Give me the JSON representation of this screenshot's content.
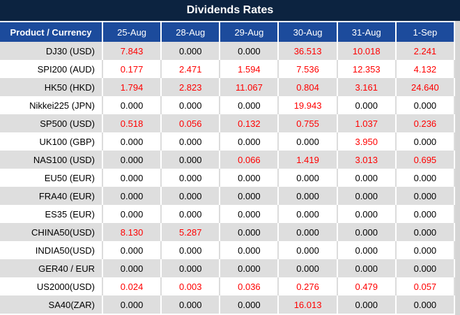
{
  "title": "Dividends Rates",
  "table": {
    "product_header": "Product / Currency",
    "date_headers": [
      "25-Aug",
      "28-Aug",
      "29-Aug",
      "30-Aug",
      "31-Aug",
      "1-Sep"
    ],
    "rows": [
      {
        "product": "DJ30 (USD)",
        "values": [
          "7.843",
          "0.000",
          "0.000",
          "36.513",
          "10.018",
          "2.241"
        ]
      },
      {
        "product": "SPI200 (AUD)",
        "values": [
          "0.177",
          "2.471",
          "1.594",
          "7.536",
          "12.353",
          "4.132"
        ]
      },
      {
        "product": "HK50 (HKD)",
        "values": [
          "1.794",
          "2.823",
          "11.067",
          "0.804",
          "3.161",
          "24.640"
        ]
      },
      {
        "product": "Nikkei225 (JPN)",
        "values": [
          "0.000",
          "0.000",
          "0.000",
          "19.943",
          "0.000",
          "0.000"
        ]
      },
      {
        "product": "SP500 (USD)",
        "values": [
          "0.518",
          "0.056",
          "0.132",
          "0.755",
          "1.037",
          "0.236"
        ]
      },
      {
        "product": "UK100 (GBP)",
        "values": [
          "0.000",
          "0.000",
          "0.000",
          "0.000",
          "3.950",
          "0.000"
        ]
      },
      {
        "product": "NAS100 (USD)",
        "values": [
          "0.000",
          "0.000",
          "0.066",
          "1.419",
          "3.013",
          "0.695"
        ]
      },
      {
        "product": "EU50 (EUR)",
        "values": [
          "0.000",
          "0.000",
          "0.000",
          "0.000",
          "0.000",
          "0.000"
        ]
      },
      {
        "product": "FRA40 (EUR)",
        "values": [
          "0.000",
          "0.000",
          "0.000",
          "0.000",
          "0.000",
          "0.000"
        ]
      },
      {
        "product": "ES35 (EUR)",
        "values": [
          "0.000",
          "0.000",
          "0.000",
          "0.000",
          "0.000",
          "0.000"
        ]
      },
      {
        "product": "CHINA50(USD)",
        "values": [
          "8.130",
          "5.287",
          "0.000",
          "0.000",
          "0.000",
          "0.000"
        ]
      },
      {
        "product": "INDIA50(USD)",
        "values": [
          "0.000",
          "0.000",
          "0.000",
          "0.000",
          "0.000",
          "0.000"
        ]
      },
      {
        "product": "GER40 / EUR",
        "values": [
          "0.000",
          "0.000",
          "0.000",
          "0.000",
          "0.000",
          "0.000"
        ]
      },
      {
        "product": "US2000(USD)",
        "values": [
          "0.024",
          "0.003",
          "0.036",
          "0.276",
          "0.479",
          "0.057"
        ]
      },
      {
        "product": "SA40(ZAR)",
        "values": [
          "0.000",
          "0.000",
          "0.000",
          "16.013",
          "0.000",
          "0.000"
        ]
      }
    ]
  },
  "chart_data": {
    "type": "table",
    "title": "Dividends Rates",
    "columns": [
      "Product / Currency",
      "25-Aug",
      "28-Aug",
      "29-Aug",
      "30-Aug",
      "31-Aug",
      "1-Sep"
    ],
    "rows": [
      [
        "DJ30 (USD)",
        7.843,
        0.0,
        0.0,
        36.513,
        10.018,
        2.241
      ],
      [
        "SPI200 (AUD)",
        0.177,
        2.471,
        1.594,
        7.536,
        12.353,
        4.132
      ],
      [
        "HK50 (HKD)",
        1.794,
        2.823,
        11.067,
        0.804,
        3.161,
        24.64
      ],
      [
        "Nikkei225 (JPN)",
        0.0,
        0.0,
        0.0,
        19.943,
        0.0,
        0.0
      ],
      [
        "SP500 (USD)",
        0.518,
        0.056,
        0.132,
        0.755,
        1.037,
        0.236
      ],
      [
        "UK100 (GBP)",
        0.0,
        0.0,
        0.0,
        0.0,
        3.95,
        0.0
      ],
      [
        "NAS100 (USD)",
        0.0,
        0.0,
        0.066,
        1.419,
        3.013,
        0.695
      ],
      [
        "EU50 (EUR)",
        0.0,
        0.0,
        0.0,
        0.0,
        0.0,
        0.0
      ],
      [
        "FRA40 (EUR)",
        0.0,
        0.0,
        0.0,
        0.0,
        0.0,
        0.0
      ],
      [
        "ES35 (EUR)",
        0.0,
        0.0,
        0.0,
        0.0,
        0.0,
        0.0
      ],
      [
        "CHINA50(USD)",
        8.13,
        5.287,
        0.0,
        0.0,
        0.0,
        0.0
      ],
      [
        "INDIA50(USD)",
        0.0,
        0.0,
        0.0,
        0.0,
        0.0,
        0.0
      ],
      [
        "GER40 / EUR",
        0.0,
        0.0,
        0.0,
        0.0,
        0.0,
        0.0
      ],
      [
        "US2000(USD)",
        0.024,
        0.003,
        0.036,
        0.276,
        0.479,
        0.057
      ],
      [
        "SA40(ZAR)",
        0.0,
        0.0,
        0.0,
        16.013,
        0.0,
        0.0
      ]
    ],
    "legend_position": "none",
    "note": "zero values rendered black, non-zero values rendered red"
  },
  "colors": {
    "title_bar_bg": "#0C2340",
    "header_row_bg": "#1C4B9C",
    "header_text": "#FFFFFF",
    "row_alt_bg": "#DEDEDE",
    "row_bg": "#FFFFFF",
    "zero_value_text": "#000000",
    "nonzero_value_text": "#FF0000",
    "right_gutter_bg": "#D5D5D5"
  }
}
